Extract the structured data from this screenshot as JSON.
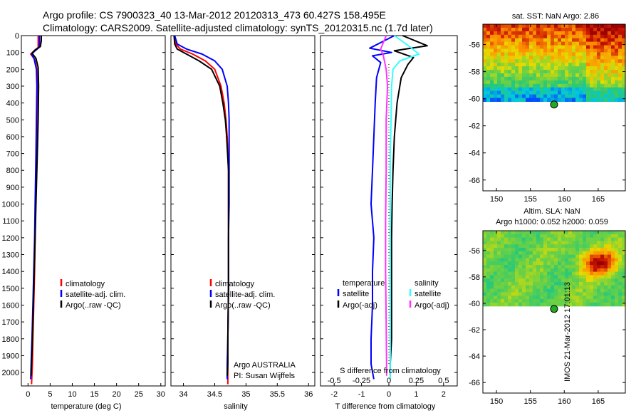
{
  "header": {
    "title_line1": "Argo profile: CS 7900323_40 13-Mar-2012 20120313_473 60.427S 158.495E",
    "title_line2": "Climatology: CARS2009. Satellite-adjusted climatology: synTS_20120315.nc (1.7d later)"
  },
  "side_stamp": "IMOS 21-Mar-2012 17:01:13",
  "colors": {
    "climatology": "#ff0000",
    "satellite": "#0000ff",
    "argo": "#000000",
    "sal_satellite": "#33ffff",
    "sal_argo": "#ff33ff",
    "marker": "#22aa22"
  },
  "chart_data": [
    {
      "type": "line",
      "id": "temperature",
      "xlabel": "temperature (deg C)",
      "xlim": [
        -1.5,
        31
      ],
      "xticks": [
        0,
        5,
        10,
        15,
        20,
        25,
        30
      ],
      "ylim": [
        2080,
        0
      ],
      "yticks": [
        0,
        100,
        200,
        300,
        400,
        500,
        600,
        700,
        800,
        900,
        1000,
        1100,
        1200,
        1300,
        1400,
        1500,
        1600,
        1700,
        1800,
        1900,
        2000
      ],
      "legend": [
        "climatology",
        "satellite-adj. clim.",
        "Argo(..raw -QC)"
      ],
      "series": [
        {
          "name": "climatology",
          "color": "#ff0000",
          "x": [
            2.3,
            2.3,
            2.3,
            1.4,
            0.6,
            1.5,
            2.0,
            2.1,
            2.0,
            1.9,
            1.7,
            1.6,
            1.5,
            1.3,
            1.1,
            1.0,
            0.8
          ],
          "y": [
            0,
            40,
            70,
            90,
            110,
            140,
            200,
            300,
            500,
            700,
            1000,
            1200,
            1400,
            1600,
            1800,
            1950,
            2070
          ]
        },
        {
          "name": "satellite-adj. clim.",
          "color": "#0000ff",
          "x": [
            2.6,
            2.6,
            2.5,
            1.6,
            0.8,
            1.4,
            1.9,
            2.0,
            1.9,
            1.8,
            1.6,
            1.5,
            1.3,
            1.1,
            0.9,
            0.7,
            0.6
          ],
          "y": [
            0,
            40,
            70,
            90,
            110,
            140,
            200,
            300,
            500,
            700,
            1000,
            1200,
            1400,
            1600,
            1800,
            1950,
            2040
          ]
        },
        {
          "name": "Argo(..raw -QC)",
          "color": "#000000",
          "x": [
            3.0,
            3.0,
            2.8,
            1.6,
            0.9,
            1.8,
            2.3,
            2.4,
            2.3,
            2.1,
            1.8,
            1.6,
            1.4,
            1.2,
            1.0,
            0.8,
            0.7
          ],
          "y": [
            0,
            30,
            65,
            85,
            105,
            135,
            190,
            300,
            500,
            700,
            1000,
            1200,
            1400,
            1600,
            1800,
            1950,
            2020
          ]
        }
      ]
    },
    {
      "type": "line",
      "id": "salinity",
      "xlabel": "salinity",
      "xlim": [
        33.8,
        36.1
      ],
      "xticks": [
        34,
        34.5,
        35,
        35.5,
        36
      ],
      "ylim": [
        2080,
        0
      ],
      "legend": [
        "climatology",
        "satellite-adj. clim.",
        "Argo(..raw -QC)"
      ],
      "annotation": [
        "Argo AUSTRALIA",
        "PI: Susan Wijffels"
      ],
      "series": [
        {
          "name": "climatology",
          "color": "#ff0000",
          "x": [
            33.85,
            33.88,
            33.95,
            34.15,
            34.35,
            34.5,
            34.6,
            34.65,
            34.68,
            34.7,
            34.72,
            34.72,
            34.72,
            34.72,
            34.71,
            34.71,
            34.71
          ],
          "y": [
            0,
            50,
            80,
            110,
            150,
            200,
            300,
            400,
            500,
            600,
            800,
            1000,
            1200,
            1500,
            1800,
            2000,
            2070
          ]
        },
        {
          "name": "satellite-adj. clim.",
          "color": "#0000ff",
          "x": [
            33.86,
            33.9,
            34.05,
            34.3,
            34.5,
            34.62,
            34.7,
            34.72,
            34.73,
            34.73,
            34.73,
            34.73,
            34.72,
            34.72,
            34.71,
            34.7,
            34.7
          ],
          "y": [
            0,
            50,
            80,
            110,
            150,
            200,
            300,
            400,
            500,
            600,
            800,
            1000,
            1200,
            1500,
            1800,
            1950,
            2040
          ]
        },
        {
          "name": "Argo(..raw -QC)",
          "color": "#000000",
          "x": [
            33.85,
            33.86,
            33.9,
            34.05,
            34.25,
            34.45,
            34.58,
            34.63,
            34.67,
            34.69,
            34.72,
            34.72,
            34.72,
            34.72,
            34.71,
            34.71,
            34.7
          ],
          "y": [
            0,
            50,
            80,
            110,
            150,
            200,
            300,
            400,
            500,
            600,
            800,
            1000,
            1200,
            1500,
            1800,
            1950,
            2020
          ]
        }
      ]
    },
    {
      "type": "line",
      "id": "differences",
      "xlabel": "T difference from climatology",
      "xlabel_top": "S difference from climatology",
      "xlim": [
        -2.5,
        2.5
      ],
      "xticks": [
        -2,
        -1,
        0,
        1,
        2
      ],
      "xticks_top": [
        "-0.5",
        "-0.25",
        "0",
        "0.25",
        "0.5"
      ],
      "xticks_top_pos": [
        -2,
        -1,
        0,
        1,
        2
      ],
      "ylim": [
        2080,
        0
      ],
      "legend_left_title": "temperature",
      "legend_right_title": "salinity",
      "legend_left": [
        "satellite",
        "Argo(-adj)"
      ],
      "legend_right": [
        "satellite",
        "Argo(-adj)"
      ],
      "series": [
        {
          "name": "T satellite",
          "color": "#0000ff",
          "x": [
            0.2,
            -0.7,
            0.1,
            -0.6,
            -0.3,
            -0.45,
            -0.5,
            -0.55,
            -0.6,
            -0.65,
            -0.55,
            -0.6,
            -0.6,
            -0.65,
            -0.65,
            -0.55
          ],
          "y": [
            0,
            75,
            100,
            120,
            160,
            250,
            400,
            600,
            800,
            1000,
            1200,
            1400,
            1600,
            1800,
            1950,
            2040
          ]
        },
        {
          "name": "T Argo(-adj)",
          "color": "#000000",
          "x": [
            0.5,
            1.4,
            0.2,
            0.9,
            0.7,
            0.45,
            0.3,
            0.2,
            0.15,
            0.12,
            0.1,
            0.1,
            0.1,
            0.1,
            0.05,
            0.05
          ],
          "y": [
            0,
            60,
            90,
            130,
            170,
            250,
            400,
            600,
            800,
            1000,
            1200,
            1400,
            1600,
            1800,
            1950,
            2020
          ]
        },
        {
          "name": "S satellite",
          "color": "#33ffff",
          "x": [
            0.2,
            0.8,
            1.1,
            0.4,
            0.15,
            0.1,
            0.08,
            0.05,
            0.05,
            0.05,
            0.05,
            0.05,
            0.05,
            0.05,
            0.05
          ],
          "y": [
            0,
            70,
            110,
            150,
            200,
            300,
            500,
            700,
            900,
            1100,
            1300,
            1500,
            1700,
            1900,
            2040
          ]
        },
        {
          "name": "S Argo(-adj)",
          "color": "#ff33ff",
          "x": [
            -0.1,
            -0.3,
            -0.2,
            -0.1,
            -0.05,
            -0.1,
            -0.1,
            -0.12,
            -0.12,
            -0.1,
            -0.08
          ],
          "y": [
            0,
            80,
            120,
            200,
            300,
            500,
            800,
            1100,
            1400,
            1700,
            2020
          ]
        }
      ]
    }
  ],
  "map_sst": {
    "title": "sat. SST: NaN Argo: 2.86",
    "xticks": [
      150,
      155,
      160,
      165
    ],
    "yticks": [
      -56,
      -58,
      -60,
      -62,
      -64,
      -66
    ],
    "xlim": [
      148,
      169
    ],
    "ylim": [
      -66.8,
      -54.5
    ],
    "data_south": -60.2,
    "argo_lon": 158.495,
    "argo_lat": -60.427
  },
  "map_sla": {
    "title": "Altim. SLA: NaN",
    "subtitle": "Argo h1000: 0.052 h2000: 0.059",
    "xticks": [
      150,
      155,
      160,
      165
    ],
    "yticks": [
      -56,
      -58,
      -60,
      -62,
      -64,
      -66
    ],
    "xlim": [
      148,
      169
    ],
    "ylim": [
      -66.8,
      -54.5
    ],
    "data_south": -60.2,
    "argo_lon": 158.495,
    "argo_lat": -60.427
  }
}
